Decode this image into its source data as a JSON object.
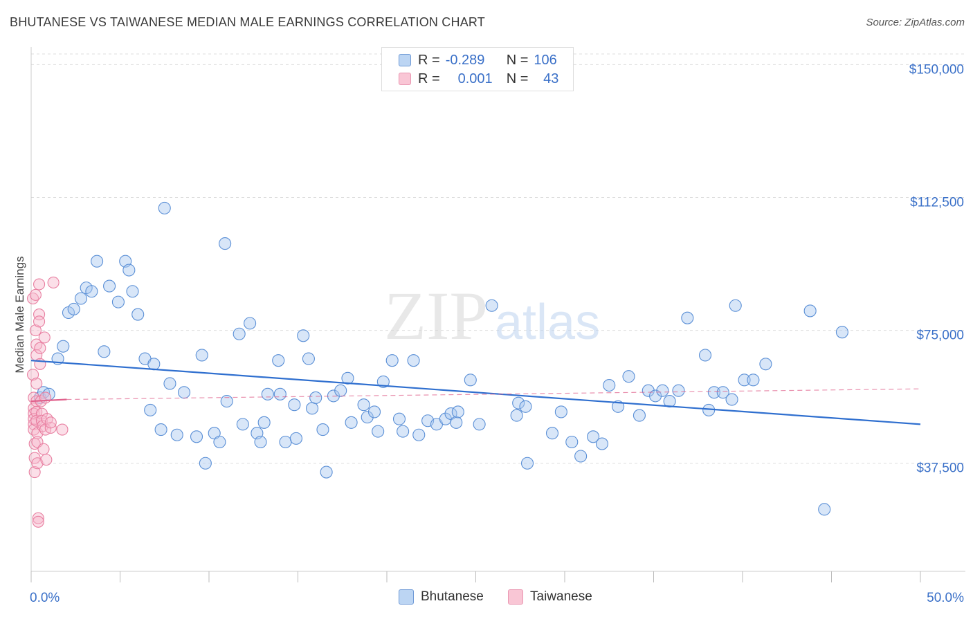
{
  "header": {
    "title": "BHUTANESE VS TAIWANESE MEDIAN MALE EARNINGS CORRELATION CHART",
    "source": "Source: ZipAtlas.com"
  },
  "watermark": {
    "zip": "ZIP",
    "atlas": "atlas"
  },
  "legend_top": {
    "rows": [
      {
        "r_label": "R =",
        "r_value": "-0.289",
        "n_label": "N =",
        "n_value": "106"
      },
      {
        "r_label": "R =",
        "r_value": "0.001",
        "n_label": "N =",
        "n_value": "43"
      }
    ]
  },
  "legend_bottom": {
    "items": [
      "Bhutanese",
      "Taiwanese"
    ]
  },
  "colors": {
    "blue_fill": "#a9c8ef",
    "blue_stroke": "#5a8fd6",
    "blue_line": "#2f6fcf",
    "pink_fill": "#f6b8cc",
    "pink_stroke": "#e87ea0",
    "pink_line": "#e0618c",
    "axis_label": "#3a70c8",
    "grid": "#dddddd"
  },
  "chart_data": {
    "type": "scatter",
    "title": "BHUTANESE VS TAIWANESE MEDIAN MALE EARNINGS CORRELATION CHART",
    "xlabel": "",
    "ylabel": "Median Male Earnings",
    "x_unit": "%",
    "xlim": [
      0,
      50
    ],
    "ylim": [
      7000,
      153000
    ],
    "x_tick_labels": [
      "0.0%",
      "50.0%"
    ],
    "y_ticks": [
      37500,
      75000,
      112500,
      150000
    ],
    "y_tick_labels": [
      "$37,500",
      "$75,000",
      "$112,500",
      "$150,000"
    ],
    "grid": true,
    "legend_position": "top-center",
    "series": [
      {
        "name": "Bhutanese",
        "r": -0.289,
        "n": 106,
        "trend": {
          "x": [
            0,
            50
          ],
          "y": [
            66500,
            48500
          ]
        },
        "points": [
          [
            0.5,
            56000
          ],
          [
            0.7,
            57500
          ],
          [
            1.0,
            57000
          ],
          [
            1.5,
            67000
          ],
          [
            1.8,
            70500
          ],
          [
            2.1,
            80000
          ],
          [
            2.4,
            81000
          ],
          [
            2.8,
            84000
          ],
          [
            3.1,
            87000
          ],
          [
            3.4,
            86000
          ],
          [
            3.7,
            94500
          ],
          [
            4.1,
            69000
          ],
          [
            4.4,
            87500
          ],
          [
            4.9,
            83000
          ],
          [
            5.3,
            94500
          ],
          [
            5.5,
            92000
          ],
          [
            5.7,
            86000
          ],
          [
            6.0,
            79500
          ],
          [
            6.4,
            67000
          ],
          [
            6.7,
            52500
          ],
          [
            6.9,
            65500
          ],
          [
            7.3,
            47000
          ],
          [
            7.5,
            109500
          ],
          [
            7.8,
            60000
          ],
          [
            8.2,
            45500
          ],
          [
            8.6,
            57500
          ],
          [
            9.3,
            45000
          ],
          [
            9.6,
            68000
          ],
          [
            9.8,
            37500
          ],
          [
            10.3,
            46000
          ],
          [
            10.6,
            43500
          ],
          [
            10.9,
            99500
          ],
          [
            11.0,
            55000
          ],
          [
            11.7,
            74000
          ],
          [
            11.9,
            48500
          ],
          [
            12.3,
            77000
          ],
          [
            12.7,
            46000
          ],
          [
            12.9,
            43500
          ],
          [
            13.1,
            49000
          ],
          [
            13.3,
            57000
          ],
          [
            13.9,
            66500
          ],
          [
            14.0,
            57000
          ],
          [
            14.3,
            43500
          ],
          [
            14.8,
            54000
          ],
          [
            14.9,
            44500
          ],
          [
            15.3,
            73500
          ],
          [
            15.6,
            67000
          ],
          [
            15.8,
            53000
          ],
          [
            16.0,
            56000
          ],
          [
            16.4,
            47000
          ],
          [
            16.6,
            35000
          ],
          [
            17.0,
            56500
          ],
          [
            17.4,
            58000
          ],
          [
            17.8,
            61500
          ],
          [
            18.0,
            49000
          ],
          [
            18.7,
            54000
          ],
          [
            18.9,
            50500
          ],
          [
            19.3,
            52000
          ],
          [
            19.5,
            46500
          ],
          [
            19.8,
            60500
          ],
          [
            20.3,
            66500
          ],
          [
            20.7,
            50000
          ],
          [
            20.9,
            46500
          ],
          [
            21.5,
            66500
          ],
          [
            21.8,
            45500
          ],
          [
            22.3,
            49500
          ],
          [
            22.8,
            48500
          ],
          [
            23.3,
            50000
          ],
          [
            23.6,
            51500
          ],
          [
            23.9,
            49000
          ],
          [
            24.0,
            52000
          ],
          [
            24.7,
            61000
          ],
          [
            25.2,
            48500
          ],
          [
            25.9,
            82000
          ],
          [
            27.3,
            51000
          ],
          [
            27.4,
            54500
          ],
          [
            27.8,
            53500
          ],
          [
            27.9,
            37500
          ],
          [
            29.3,
            46000
          ],
          [
            29.8,
            52000
          ],
          [
            30.4,
            43500
          ],
          [
            30.9,
            39500
          ],
          [
            31.6,
            45000
          ],
          [
            32.1,
            43000
          ],
          [
            32.5,
            59500
          ],
          [
            33.0,
            53500
          ],
          [
            33.6,
            62000
          ],
          [
            34.2,
            51000
          ],
          [
            34.7,
            58000
          ],
          [
            35.1,
            56500
          ],
          [
            35.5,
            58000
          ],
          [
            35.9,
            55000
          ],
          [
            36.4,
            58000
          ],
          [
            36.9,
            78500
          ],
          [
            37.9,
            68000
          ],
          [
            38.1,
            52500
          ],
          [
            38.4,
            57500
          ],
          [
            38.9,
            57500
          ],
          [
            39.4,
            55500
          ],
          [
            39.6,
            82000
          ],
          [
            40.1,
            61000
          ],
          [
            40.6,
            61000
          ],
          [
            41.3,
            65500
          ],
          [
            43.8,
            80500
          ],
          [
            44.6,
            24500
          ],
          [
            45.6,
            74500
          ]
        ]
      },
      {
        "name": "Taiwanese",
        "r": 0.001,
        "n": 43,
        "trend": {
          "x": [
            0,
            2
          ],
          "y": [
            55000,
            55500
          ],
          "dashed_extension_to": [
            50,
            58500
          ]
        },
        "points": [
          [
            0.1,
            84000
          ],
          [
            0.1,
            62500
          ],
          [
            0.15,
            56000
          ],
          [
            0.15,
            53000
          ],
          [
            0.15,
            51500
          ],
          [
            0.15,
            50000
          ],
          [
            0.15,
            48500
          ],
          [
            0.15,
            47000
          ],
          [
            0.2,
            43000
          ],
          [
            0.2,
            39000
          ],
          [
            0.2,
            35000
          ],
          [
            0.25,
            85000
          ],
          [
            0.25,
            75000
          ],
          [
            0.3,
            71000
          ],
          [
            0.3,
            68000
          ],
          [
            0.3,
            60000
          ],
          [
            0.3,
            55000
          ],
          [
            0.3,
            52000
          ],
          [
            0.3,
            49500
          ],
          [
            0.35,
            46000
          ],
          [
            0.35,
            43500
          ],
          [
            0.35,
            37500
          ],
          [
            0.4,
            22000
          ],
          [
            0.4,
            21000
          ],
          [
            0.45,
            88000
          ],
          [
            0.45,
            79500
          ],
          [
            0.45,
            77500
          ],
          [
            0.5,
            70000
          ],
          [
            0.5,
            65500
          ],
          [
            0.55,
            55000
          ],
          [
            0.6,
            51500
          ],
          [
            0.6,
            49500
          ],
          [
            0.65,
            48000
          ],
          [
            0.7,
            41500
          ],
          [
            0.75,
            73000
          ],
          [
            0.8,
            56000
          ],
          [
            0.8,
            47000
          ],
          [
            0.85,
            38500
          ],
          [
            0.9,
            50000
          ],
          [
            1.1,
            47500
          ],
          [
            1.1,
            49000
          ],
          [
            1.25,
            88500
          ],
          [
            1.75,
            47000
          ]
        ]
      }
    ]
  }
}
